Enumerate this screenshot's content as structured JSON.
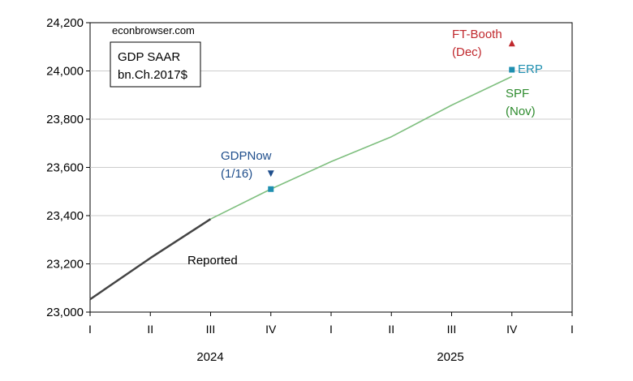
{
  "chart_data": {
    "type": "line",
    "source": "econbrowser.com",
    "box_label": [
      "GDP SAAR",
      "bn.Ch.2017$"
    ],
    "x_ticks": [
      "I",
      "II",
      "III",
      "IV",
      "I",
      "II",
      "III",
      "IV",
      "I"
    ],
    "years": [
      "2024",
      "2025"
    ],
    "ylim": [
      23000,
      24200
    ],
    "y_ticks": [
      23000,
      23200,
      23400,
      23600,
      23800,
      24000,
      24200
    ],
    "y_tick_labels": [
      "23,000",
      "23,200",
      "23,400",
      "23,600",
      "23,800",
      "24,000",
      "24,200"
    ],
    "grid": "horizontal",
    "series": [
      {
        "name": "Reported",
        "color": "#444444",
        "x": [
          "2024Q1",
          "2024Q2",
          "2024Q3"
        ],
        "values": [
          23053,
          23224,
          23386
        ]
      },
      {
        "name": "SPF (Nov)",
        "color": "#7fbf7f",
        "x": [
          "2024Q3",
          "2024Q4",
          "2025Q1",
          "2025Q2",
          "2025Q3",
          "2025Q4"
        ],
        "values": [
          23386,
          23510,
          23624,
          23727,
          23858,
          23977
        ]
      }
    ],
    "points": [
      {
        "label": "GDPNow (1/16)",
        "x": "2024Q4",
        "value": 23574,
        "marker": "triangle-down",
        "color": "#1f4e8c"
      },
      {
        "label": "ERP",
        "x": "2024Q4",
        "value": 23510,
        "marker": "square",
        "color": "#1f8fb0"
      },
      {
        "label": "ERP",
        "x": "2025Q4",
        "value": 24005,
        "marker": "square",
        "color": "#1f8fb0"
      },
      {
        "label": "FT-Booth (Dec)",
        "x": "2025Q4",
        "value": 24115,
        "marker": "triangle-up",
        "color": "#c0282d"
      }
    ],
    "annotations": {
      "reported": "Reported",
      "gdpnow_line1": "GDPNow",
      "gdpnow_line2": "(1/16)",
      "ftbooth_line1": "FT-Booth",
      "ftbooth_line2": "(Dec)",
      "erp": "ERP",
      "spf_line1": "SPF",
      "spf_line2": "(Nov)"
    },
    "colors": {
      "reported": "#444444",
      "spf": "#7fbf7f",
      "gdpnow": "#1f4e8c",
      "erp": "#1f8fb0",
      "ftbooth": "#c0282d"
    }
  }
}
